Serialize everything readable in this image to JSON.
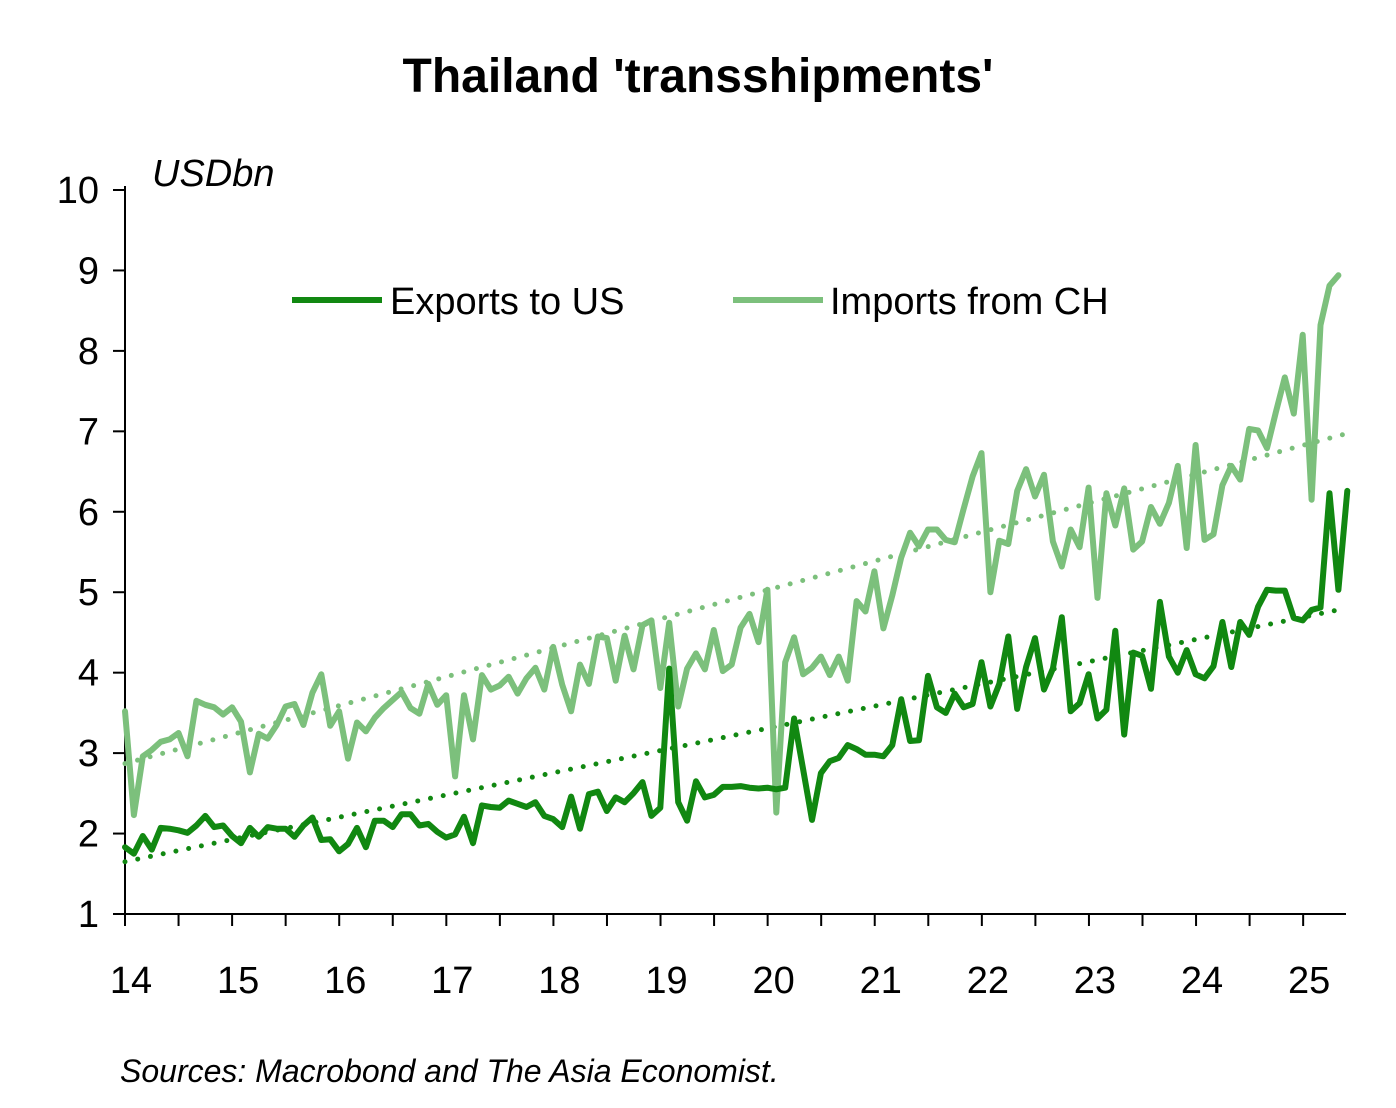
{
  "chart_data": {
    "type": "line",
    "title": "Thailand 'transshipments'",
    "unit_label": "USDbn",
    "source": "Sources: Macrobond and The Asia Economist.",
    "ylim": [
      1,
      10
    ],
    "yticks": [
      1,
      2,
      3,
      4,
      5,
      6,
      7,
      8,
      9,
      10
    ],
    "xlim": [
      14,
      25.4
    ],
    "xtick_labels": [
      "14",
      "15",
      "16",
      "17",
      "18",
      "19",
      "20",
      "21",
      "22",
      "23",
      "24",
      "25"
    ],
    "legend_position": "top-center",
    "grid": false,
    "x_start": 14,
    "x_step_years": 0.0833,
    "series": [
      {
        "name": "Exports to US",
        "color": "#118811",
        "values": [
          1.83,
          1.75,
          1.97,
          1.8,
          2.07,
          2.06,
          2.04,
          2.01,
          2.1,
          2.22,
          2.08,
          2.1,
          1.97,
          1.88,
          2.07,
          1.96,
          2.08,
          2.06,
          2.06,
          1.96,
          2.1,
          2.2,
          1.92,
          1.93,
          1.78,
          1.87,
          2.07,
          1.83,
          2.16,
          2.16,
          2.08,
          2.24,
          2.24,
          2.1,
          2.12,
          2.02,
          1.95,
          1.99,
          2.21,
          1.88,
          2.35,
          2.33,
          2.32,
          2.41,
          2.37,
          2.33,
          2.39,
          2.22,
          2.18,
          2.08,
          2.46,
          2.06,
          2.49,
          2.52,
          2.28,
          2.45,
          2.39,
          2.5,
          2.64,
          2.22,
          2.32,
          4.05,
          2.39,
          2.16,
          2.65,
          2.45,
          2.48,
          2.58,
          2.58,
          2.59,
          2.57,
          2.56,
          2.57,
          2.55,
          2.57,
          3.43,
          2.8,
          2.17,
          2.75,
          2.9,
          2.94,
          3.1,
          3.05,
          2.98,
          2.98,
          2.96,
          3.1,
          3.67,
          3.15,
          3.16,
          3.96,
          3.57,
          3.5,
          3.74,
          3.57,
          3.61,
          4.13,
          3.58,
          3.86,
          4.45,
          3.55,
          4.07,
          4.43,
          3.79,
          4.05,
          4.69,
          3.52,
          3.62,
          3.98,
          3.43,
          3.54,
          4.52,
          3.23,
          4.25,
          4.21,
          3.8,
          4.88,
          4.2,
          4.0,
          4.28,
          3.98,
          3.93,
          4.08,
          4.63,
          4.07,
          4.63,
          4.47,
          4.82,
          5.03,
          5.02,
          5.02,
          4.68,
          4.65,
          4.78,
          4.81,
          6.23,
          5.03,
          6.26
        ]
      },
      {
        "name": "Imports from CH",
        "color": "#7cc07c",
        "values": [
          3.52,
          2.23,
          2.96,
          3.04,
          3.14,
          3.17,
          3.25,
          2.96,
          3.65,
          3.6,
          3.57,
          3.48,
          3.57,
          3.39,
          2.76,
          3.24,
          3.18,
          3.35,
          3.58,
          3.61,
          3.35,
          3.75,
          3.98,
          3.34,
          3.52,
          2.93,
          3.38,
          3.27,
          3.44,
          3.56,
          3.66,
          3.76,
          3.56,
          3.49,
          3.86,
          3.6,
          3.72,
          2.71,
          3.72,
          3.17,
          3.97,
          3.79,
          3.84,
          3.95,
          3.74,
          3.93,
          4.06,
          3.79,
          4.32,
          3.85,
          3.52,
          4.1,
          3.86,
          4.45,
          4.43,
          3.9,
          4.46,
          4.04,
          4.59,
          4.65,
          3.81,
          4.62,
          3.58,
          4.05,
          4.24,
          4.04,
          4.53,
          4.02,
          4.1,
          4.56,
          4.73,
          4.38,
          5.03,
          2.26,
          4.13,
          4.44,
          3.98,
          4.06,
          4.2,
          3.97,
          4.2,
          3.9,
          4.89,
          4.76,
          5.26,
          4.55,
          4.96,
          5.43,
          5.74,
          5.57,
          5.78,
          5.78,
          5.65,
          5.62,
          6.04,
          6.44,
          6.73,
          5.0,
          5.64,
          5.6,
          6.26,
          6.53,
          6.19,
          6.46,
          5.63,
          5.32,
          5.78,
          5.56,
          6.3,
          4.93,
          6.23,
          5.83,
          6.29,
          5.53,
          5.63,
          6.06,
          5.85,
          6.11,
          6.57,
          5.55,
          6.83,
          5.65,
          5.72,
          6.33,
          6.57,
          6.4,
          7.03,
          7.01,
          6.79,
          7.24,
          7.67,
          7.22,
          8.2,
          6.15,
          8.32,
          8.81,
          8.94
        ]
      },
      {
        "name": "",
        "color": "#118811",
        "values": [
          1.65,
          4.8
        ]
      },
      {
        "name": "",
        "color": "#7cc07c",
        "values": [
          2.87,
          6.97
        ]
      }
    ],
    "legend": [
      "Exports to US",
      "Imports from CH"
    ]
  }
}
